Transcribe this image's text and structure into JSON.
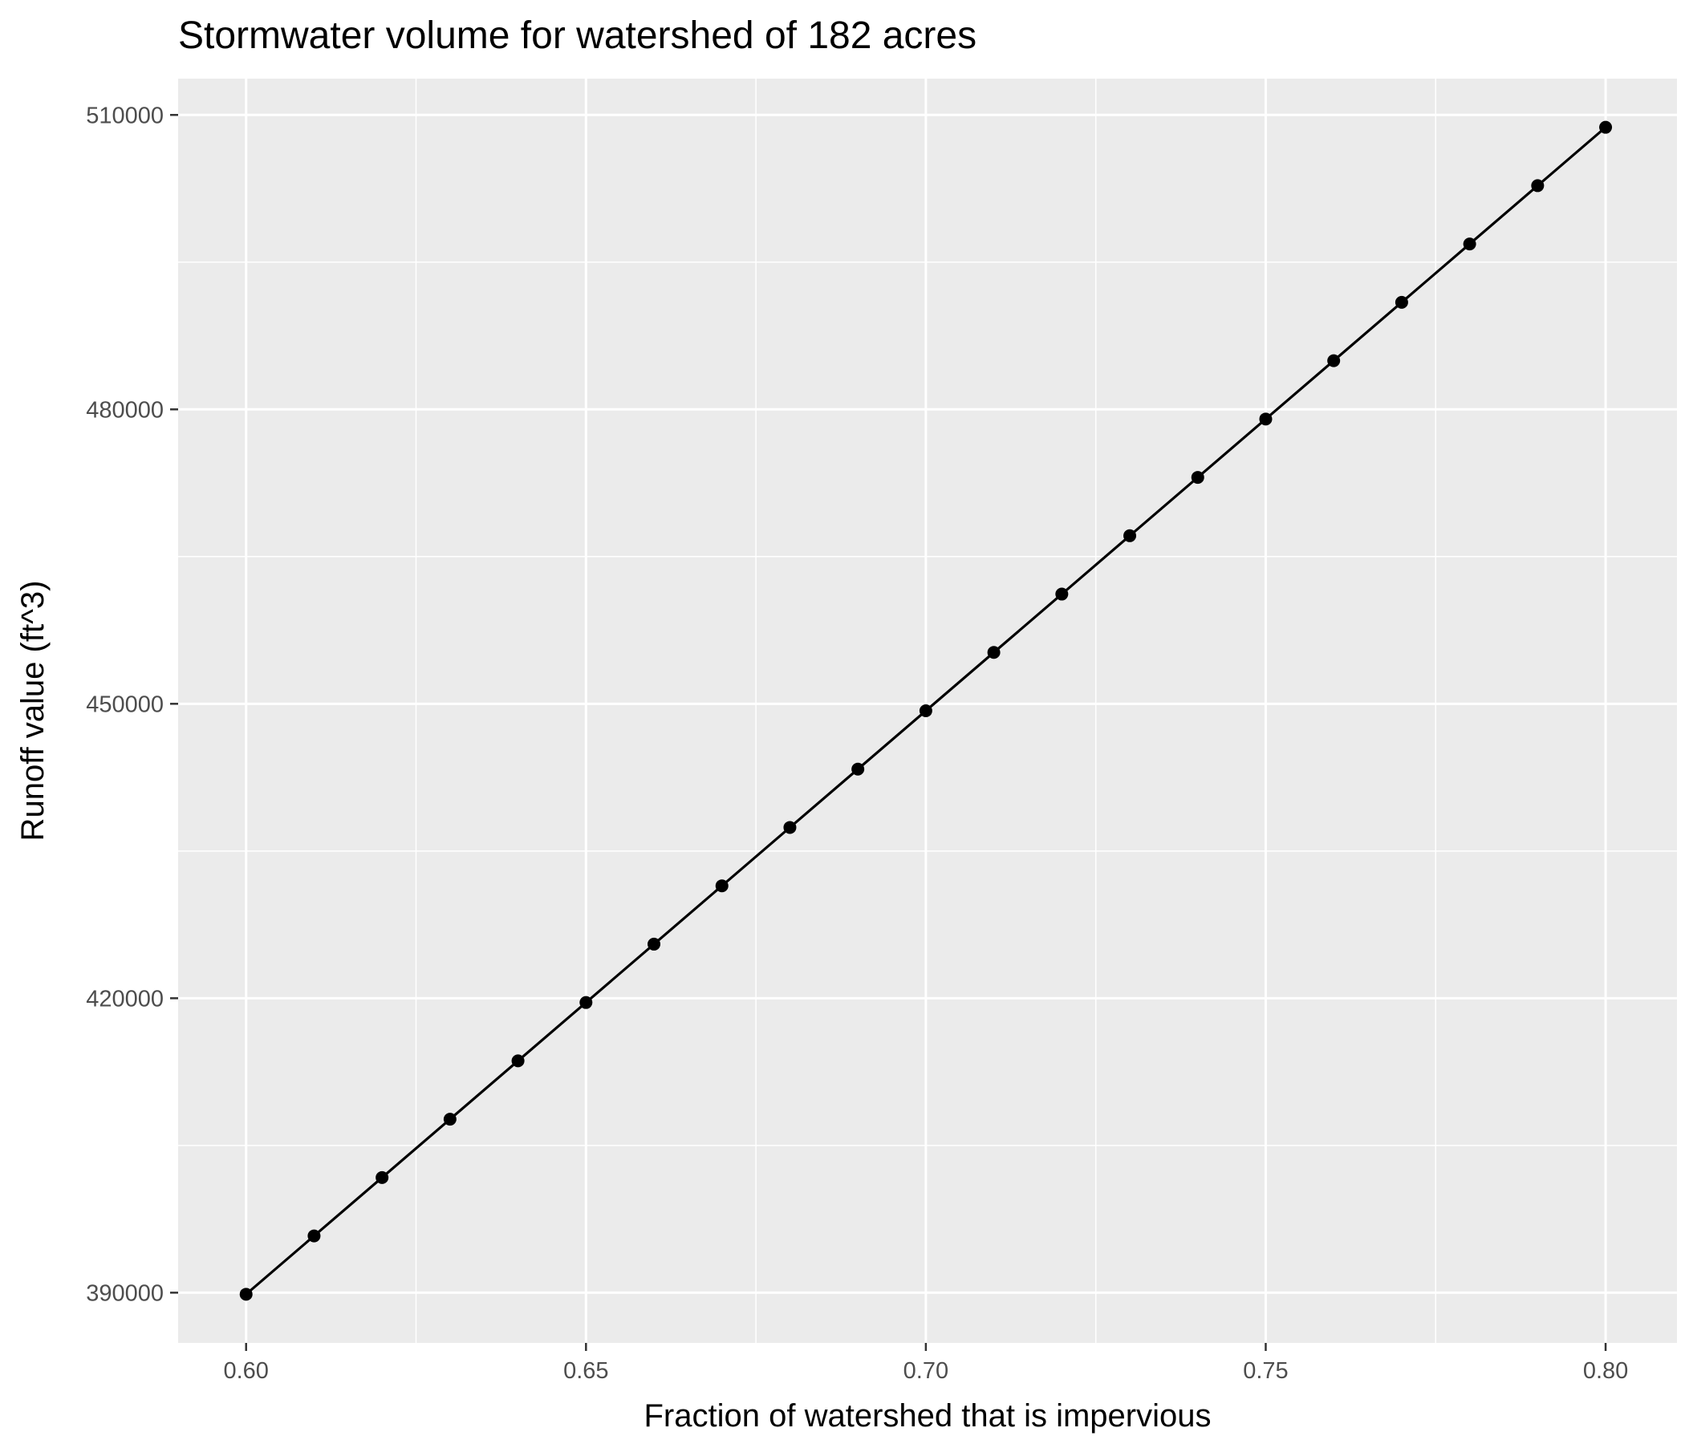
{
  "chart_data": {
    "type": "line",
    "title": "Stormwater volume for watershed of 182 acres",
    "xlabel": "Fraction of watershed that is impervious",
    "ylabel": "Runoff value (ft^3)",
    "x": [
      0.6,
      0.61,
      0.62,
      0.63,
      0.64,
      0.65,
      0.66,
      0.67,
      0.68,
      0.69,
      0.7,
      0.71,
      0.72,
      0.73,
      0.74,
      0.75,
      0.76,
      0.77,
      0.78,
      0.79,
      0.8
    ],
    "series": [
      {
        "values": [
          389840,
          395785,
          401730,
          407675,
          413620,
          419565,
          425510,
          431455,
          437400,
          443345,
          449290,
          455235,
          461180,
          467125,
          473070,
          479015,
          484960,
          490905,
          496850,
          502795,
          508740
        ]
      }
    ],
    "xlim": [
      0.59,
      0.8105
    ],
    "ylim": [
      384880,
      513700
    ],
    "x_ticks": [
      "0.60",
      "0.65",
      "0.70",
      "0.75",
      "0.80"
    ],
    "y_ticks": [
      "390000",
      "420000",
      "450000",
      "480000",
      "510000"
    ],
    "grid": true,
    "legend": "none",
    "colors": {
      "panel_background": "#ebebeb",
      "grid": "#ffffff",
      "series": "#000000",
      "tick_label": "#4d4d4d"
    }
  }
}
